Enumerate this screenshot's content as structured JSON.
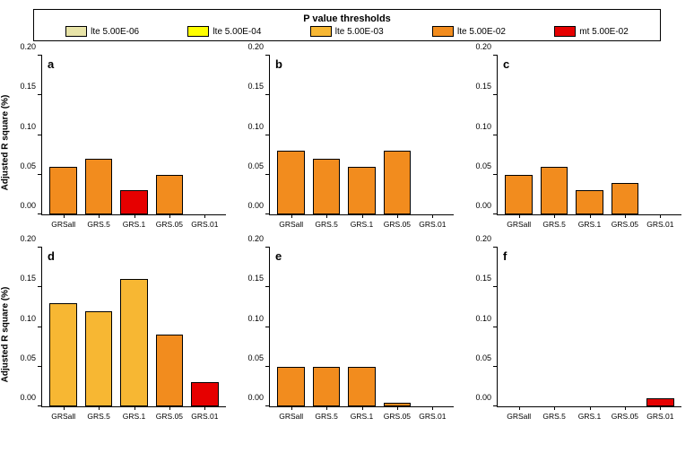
{
  "legend": {
    "title": "P value thresholds",
    "items": [
      {
        "label": "lte 5.00E-06",
        "color": "#e8e4a8"
      },
      {
        "label": "lte 5.00E-04",
        "color": "#ffff00"
      },
      {
        "label": "lte 5.00E-03",
        "color": "#f7b733"
      },
      {
        "label": "lte 5.00E-02",
        "color": "#f28c1e"
      },
      {
        "label": "mt 5.00E-02",
        "color": "#e60000"
      }
    ]
  },
  "axis": {
    "ylabel": "Adjusted R square (%)",
    "ymax": 0.2,
    "yticks": [
      0.0,
      0.05,
      0.1,
      0.15,
      0.2
    ],
    "ytick_labels": [
      "0.00",
      "0.05",
      "0.10",
      "0.15",
      "0.20"
    ],
    "categories": [
      "GRSall",
      "GRS.5",
      "GRS.1",
      "GRS.05",
      "GRS.01"
    ]
  },
  "colors": {
    "bar_border": "#000000",
    "background": "#ffffff"
  },
  "panels": [
    {
      "letter": "a",
      "bars": [
        {
          "value": 0.06,
          "color": "#f28c1e"
        },
        {
          "value": 0.07,
          "color": "#f28c1e"
        },
        {
          "value": 0.03,
          "color": "#e60000"
        },
        {
          "value": 0.05,
          "color": "#f28c1e"
        },
        {
          "value": 0.0,
          "color": "#f28c1e"
        }
      ]
    },
    {
      "letter": "b",
      "bars": [
        {
          "value": 0.08,
          "color": "#f28c1e"
        },
        {
          "value": 0.07,
          "color": "#f28c1e"
        },
        {
          "value": 0.06,
          "color": "#f28c1e"
        },
        {
          "value": 0.08,
          "color": "#f28c1e"
        },
        {
          "value": 0.0,
          "color": "#f28c1e"
        }
      ]
    },
    {
      "letter": "c",
      "bars": [
        {
          "value": 0.05,
          "color": "#f28c1e"
        },
        {
          "value": 0.06,
          "color": "#f28c1e"
        },
        {
          "value": 0.03,
          "color": "#f28c1e"
        },
        {
          "value": 0.04,
          "color": "#f28c1e"
        },
        {
          "value": 0.0,
          "color": "#f28c1e"
        }
      ]
    },
    {
      "letter": "d",
      "bars": [
        {
          "value": 0.13,
          "color": "#f7b733"
        },
        {
          "value": 0.12,
          "color": "#f7b733"
        },
        {
          "value": 0.16,
          "color": "#f7b733"
        },
        {
          "value": 0.09,
          "color": "#f28c1e"
        },
        {
          "value": 0.03,
          "color": "#e60000"
        }
      ]
    },
    {
      "letter": "e",
      "bars": [
        {
          "value": 0.05,
          "color": "#f28c1e"
        },
        {
          "value": 0.05,
          "color": "#f28c1e"
        },
        {
          "value": 0.05,
          "color": "#f28c1e"
        },
        {
          "value": 0.005,
          "color": "#f28c1e"
        },
        {
          "value": 0.0,
          "color": "#f28c1e"
        }
      ]
    },
    {
      "letter": "f",
      "bars": [
        {
          "value": 0.0,
          "color": "#f28c1e"
        },
        {
          "value": 0.0,
          "color": "#f28c1e"
        },
        {
          "value": 0.0,
          "color": "#f28c1e"
        },
        {
          "value": 0.0,
          "color": "#f28c1e"
        },
        {
          "value": 0.01,
          "color": "#e60000"
        }
      ]
    }
  ]
}
